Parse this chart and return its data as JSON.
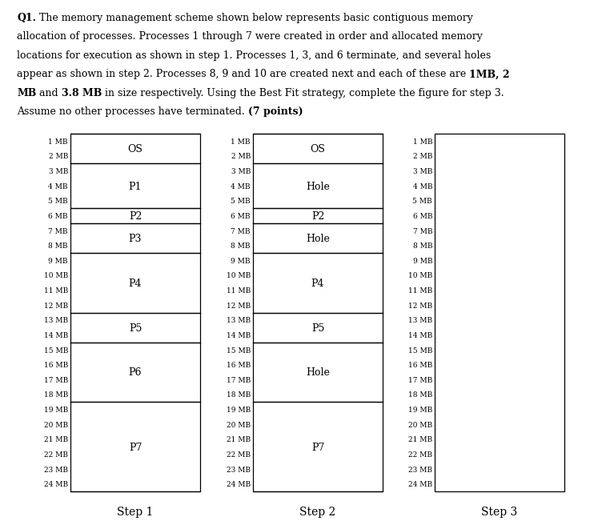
{
  "memory_min": 1,
  "memory_max": 24,
  "steps": [
    "Step 1",
    "Step 2",
    "Step 3"
  ],
  "step1_segments": [
    {
      "start": 1,
      "end": 2,
      "label": "OS"
    },
    {
      "start": 3,
      "end": 5,
      "label": "P1"
    },
    {
      "start": 6,
      "end": 6,
      "label": "P2"
    },
    {
      "start": 7,
      "end": 8,
      "label": "P3"
    },
    {
      "start": 9,
      "end": 12,
      "label": "P4"
    },
    {
      "start": 13,
      "end": 14,
      "label": "P5"
    },
    {
      "start": 15,
      "end": 18,
      "label": "P6"
    },
    {
      "start": 19,
      "end": 24,
      "label": "P7"
    }
  ],
  "step2_segments": [
    {
      "start": 1,
      "end": 2,
      "label": "OS"
    },
    {
      "start": 3,
      "end": 5,
      "label": "Hole"
    },
    {
      "start": 6,
      "end": 6,
      "label": "P2"
    },
    {
      "start": 7,
      "end": 8,
      "label": "Hole"
    },
    {
      "start": 9,
      "end": 12,
      "label": "P4"
    },
    {
      "start": 13,
      "end": 14,
      "label": "P5"
    },
    {
      "start": 15,
      "end": 18,
      "label": "Hole"
    },
    {
      "start": 19,
      "end": 24,
      "label": "P7"
    }
  ],
  "step3_segments": [],
  "bg_color": "#ffffff",
  "text_color": "#000000",
  "tick_fontsize": 6.5,
  "label_fontsize": 9,
  "step_label_fontsize": 10,
  "title_fontsize": 9,
  "title_lines": [
    [
      [
        "bold",
        "Q1."
      ],
      [
        "normal",
        " The memory management scheme shown below represents basic contiguous memory"
      ]
    ],
    [
      [
        "normal",
        "allocation of processes. Processes 1 through 7 were created in order and allocated memory"
      ]
    ],
    [
      [
        "normal",
        "locations for execution as shown in step 1. Processes 1, 3, and 6 terminate, and several holes"
      ]
    ],
    [
      [
        "normal",
        "appear as shown in step 2. Processes 8, 9 and 10 are created next and each of these are "
      ],
      [
        "bold",
        "1MB, 2"
      ]
    ],
    [
      [
        "bold",
        "MB"
      ],
      [
        "normal",
        " and "
      ],
      [
        "bold",
        "3.8 MB"
      ],
      [
        "normal",
        " in size respectively. Using the Best Fit strategy, complete the figure for step 3."
      ]
    ],
    [
      [
        "normal",
        "Assume no other processes have terminated. "
      ],
      [
        "bold",
        "(7 points)"
      ]
    ]
  ]
}
